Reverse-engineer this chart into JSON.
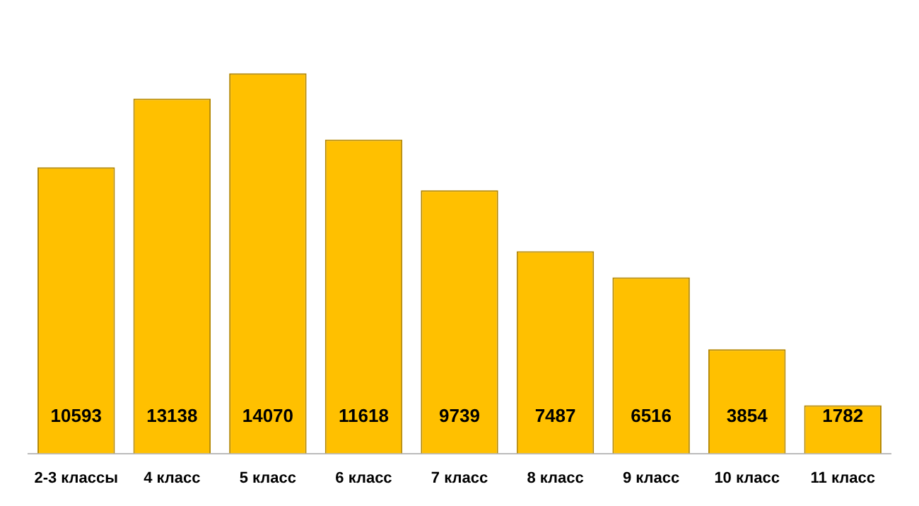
{
  "chart_data": {
    "type": "bar",
    "categories": [
      "2-3 классы",
      "4 класс",
      "5 класс",
      "6 класс",
      "7 класс",
      "8 класс",
      "9 класс",
      "10 класс",
      "11 класс"
    ],
    "values": [
      10593,
      13138,
      14070,
      11618,
      9739,
      7487,
      6516,
      3854,
      1782
    ],
    "color": "#ffc000",
    "data_labels": true,
    "grid": false,
    "legend": false
  }
}
